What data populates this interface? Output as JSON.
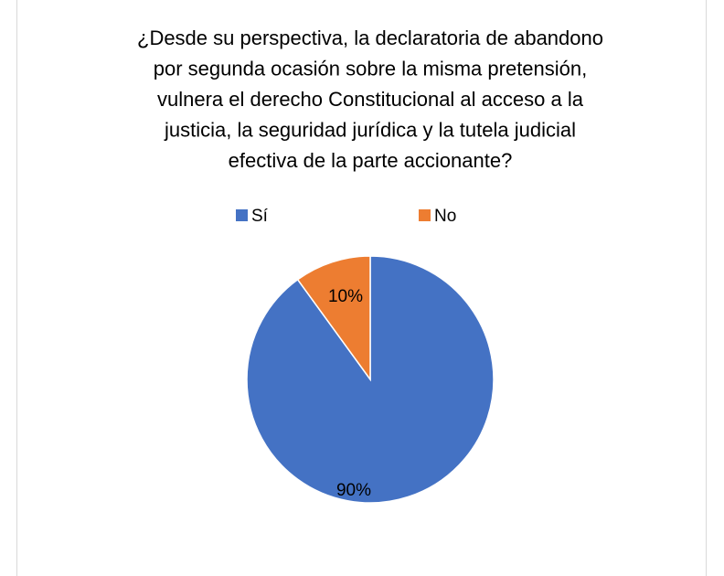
{
  "chart_data": {
    "type": "pie",
    "title": [
      "¿Desde su perspectiva, la declaratoria de abandono",
      "por segunda ocasión sobre la misma pretensión,",
      "vulnera el derecho Constitucional al acceso a la",
      "justicia, la seguridad jurídica y la tutela judicial",
      "efectiva de la parte accionante?"
    ],
    "categories": [
      "Sí",
      "No"
    ],
    "values": [
      90,
      10
    ],
    "value_labels": [
      "90%",
      "10%"
    ],
    "colors": [
      "#4472c4",
      "#ed7d31"
    ],
    "legend": "top"
  }
}
